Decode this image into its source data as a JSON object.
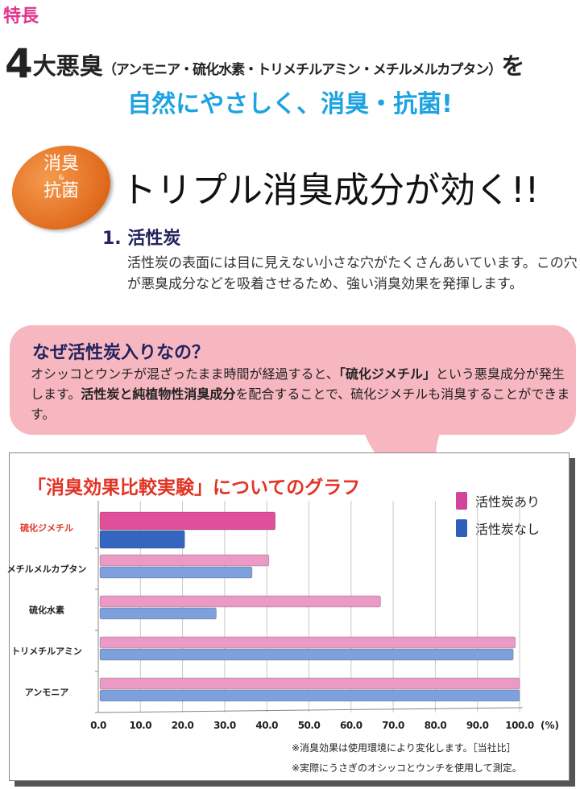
{
  "feature_label": "特長",
  "headline": {
    "number": "4",
    "main": "大悪臭",
    "paren": "（アンモニア・硫化水素・トリメチルアミン・メチルメルカプタン）",
    "suffix": "を",
    "tagline": "自然にやさしく、消臭・抗菌!"
  },
  "badge": {
    "line1": "消臭",
    "amp": "&",
    "line2": "抗菌"
  },
  "section_title": "トリプル消臭成分が効く!!",
  "item1": {
    "title": "1. 活性炭",
    "text": "活性炭の表面には目に見えない小さな穴がたくさんあいています。この穴が悪臭成分などを吸着させるため、強い消臭効果を発揮します。"
  },
  "bubble": {
    "title": "なぜ活性炭入りなの？",
    "text_a": "オシッコとウンチが混ざったまま時間が経過すると、",
    "text_b": "「硫化ジメチル」",
    "text_c": "という悪臭成分が発生します。",
    "text_d": "活性炭と純植物性消臭成分",
    "text_e": "を配合することで、硫化ジメチルも消臭することができます。"
  },
  "notes": [
    "※消臭効果は使用環境により変化します。［当社比］",
    "※実際にうさぎのオシッコとウンチを使用して測定。"
  ],
  "colors": {
    "with": "#e0509a",
    "with_light": "#eb9ac6",
    "without": "#3466c0",
    "without_light": "#7ea0dc",
    "title_red": "#e23324"
  },
  "chart_data": {
    "type": "bar",
    "orientation": "horizontal",
    "title": "「消臭効果比較実験」についてのグラフ",
    "categories": [
      "硫化ジメチル",
      "メチルメルカプタン",
      "硫化水素",
      "トリメチルアミン",
      "アンモニア"
    ],
    "highlight_category": "硫化ジメチル",
    "series": [
      {
        "name": "活性炭あり",
        "values": [
          42,
          40.5,
          67,
          99,
          100
        ]
      },
      {
        "name": "活性炭なし",
        "values": [
          20.5,
          36.5,
          28,
          98.5,
          100
        ]
      }
    ],
    "xlim": [
      0,
      100
    ],
    "xticks": [
      "0.0",
      "10.0",
      "20.0",
      "30.0",
      "40.0",
      "50.0",
      "60.0",
      "70.0",
      "80.0",
      "90.0",
      "100.0"
    ],
    "xunit": "(%)",
    "grid": true,
    "legend": "top-right"
  }
}
